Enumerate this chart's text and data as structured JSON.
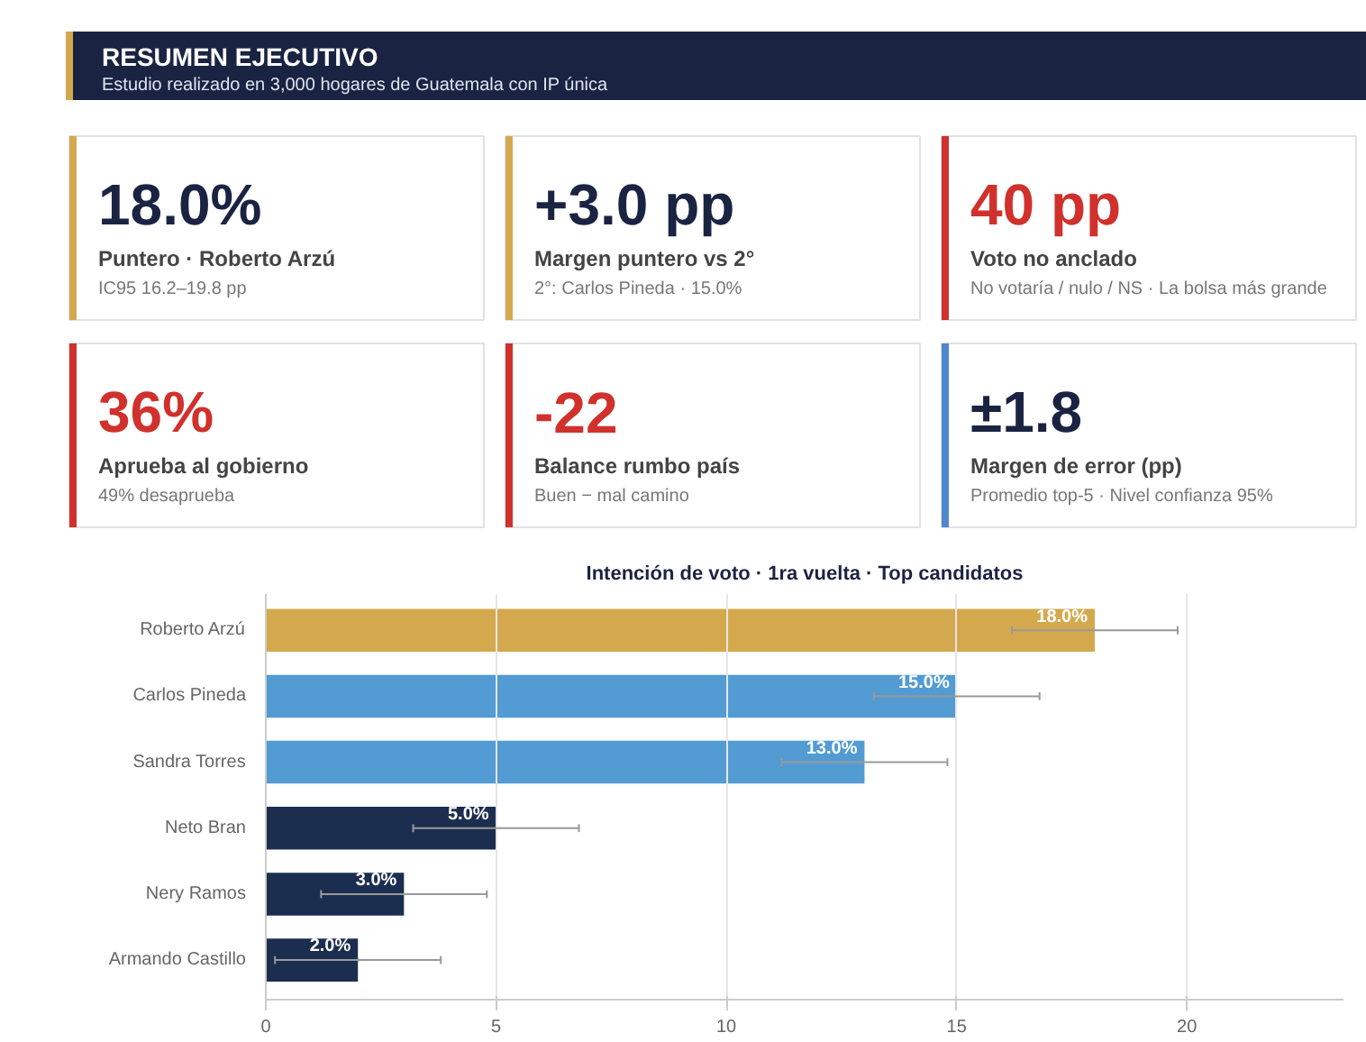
{
  "chart_data": [
    {
      "type": "other",
      "title": "RESUMEN EJECUTIVO",
      "subtitle": "Estudio realizado en 3,000 hogares de Guatemala con IP única",
      "annotations": [
        "18.0%",
        "Puntero · Roberto Arzú",
        "IC95 16.2–19.8 pp",
        "+3.0 pp",
        "Margen puntero vs 2°",
        "2°: Carlos Pineda · 15.0%",
        "40 pp",
        "Voto no anclado",
        "No votaría / nulo / NS · La bolsa más grande",
        "36%",
        "Aprueba al gobierno",
        "49% desaprueba",
        "-22",
        "Balance rumbo país",
        "Buen − mal camino",
        "±1.8",
        "Margen de error (pp)",
        "Promedio top-5 · Nivel confianza 95%"
      ],
      "colors": [
        "#d4a94e",
        "#d4a94e",
        "#d0312d",
        "#d0312d",
        "#d0312d",
        "#4f86d0"
      ]
    },
    {
      "type": "bar",
      "orientation": "horizontal",
      "title": "Intención de voto · 1ra vuelta · Top candidatos",
      "categories": [
        "Roberto Arzú",
        "Carlos Pineda",
        "Sandra Torres",
        "Neto Bran",
        "Nery Ramos",
        "Armando Castillo"
      ],
      "values": [
        18,
        15,
        13,
        5,
        3,
        2
      ],
      "colors": [
        "#d4a94e",
        "#529bd3",
        "#529bd3",
        "#1c2e4f",
        "#1c2e4f",
        "#1c2e4f"
      ],
      "errors": [
        1.8,
        1.8,
        1.8,
        1.8,
        1.8,
        1.8
      ],
      "value_labels": [
        "18.0%",
        "15.0%",
        "13.0%",
        "5.0%",
        "3.0%",
        "2.0%"
      ],
      "xlim": [
        0,
        23.4
      ],
      "xticks": [
        0,
        5,
        10,
        15,
        20
      ],
      "grid": "x"
    }
  ]
}
